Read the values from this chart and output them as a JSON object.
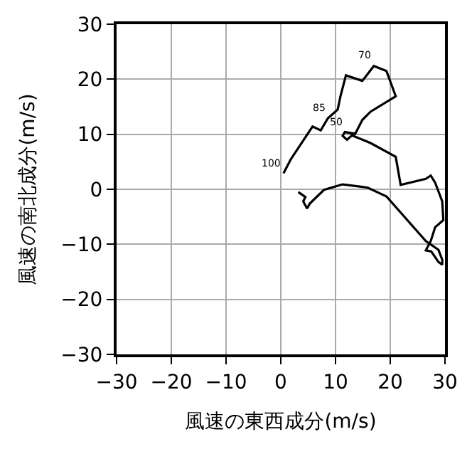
{
  "chart_data": {
    "type": "line",
    "xlabel": "風速の東西成分(m/s)",
    "ylabel": "風速の南北成分(m/s)",
    "x": [
      0.5,
      1.8,
      5.8,
      7.3,
      8.6,
      10.4,
      10.9,
      11.9,
      14.9,
      17.0,
      19.3,
      21.0,
      16.4,
      14.9,
      13.6,
      11.7,
      11.3,
      12.1,
      13.0,
      16.4,
      21.0,
      21.9,
      26.5,
      27.4,
      28.2,
      29.5,
      29.7,
      28.2,
      27.4,
      26.5,
      27.5,
      28.8,
      29.5,
      29.5,
      28.8,
      26.5,
      19.3,
      15.9,
      11.3,
      7.9,
      5.3,
      4.8,
      4.1,
      4.5,
      3.2
    ],
    "series": [
      {
        "color": "#000000",
        "values": [
          2.9,
          5.4,
          11.4,
          10.7,
          12.9,
          14.5,
          16.9,
          20.7,
          19.7,
          22.4,
          21.5,
          16.9,
          14.1,
          12.6,
          10.1,
          10.4,
          9.7,
          9.0,
          9.8,
          8.4,
          5.9,
          0.8,
          1.9,
          2.5,
          1.2,
          -2.2,
          -5.6,
          -6.9,
          -9.4,
          -11.1,
          -11.3,
          -13.2,
          -13.7,
          -12.8,
          -11.0,
          -9.4,
          -1.3,
          0.3,
          0.9,
          -0.1,
          -2.6,
          -3.5,
          -2.2,
          -1.4,
          -0.5
        ]
      }
    ],
    "annotations": [
      {
        "text": "100",
        "x": 0.5,
        "y": 2.9
      },
      {
        "text": "85",
        "x": 8.6,
        "y": 12.9
      },
      {
        "text": "50",
        "x": 11.7,
        "y": 10.4
      },
      {
        "text": "70",
        "x": 17.0,
        "y": 22.4
      }
    ],
    "xlim": [
      -30,
      30
    ],
    "ylim": [
      -30,
      30
    ],
    "xticks": [
      -30,
      -20,
      -10,
      0,
      10,
      20,
      30
    ],
    "yticks": [
      -30,
      -20,
      -10,
      0,
      10,
      20,
      30
    ],
    "grid": true,
    "marker": "none",
    "line_style": "solid",
    "legend": false
  }
}
